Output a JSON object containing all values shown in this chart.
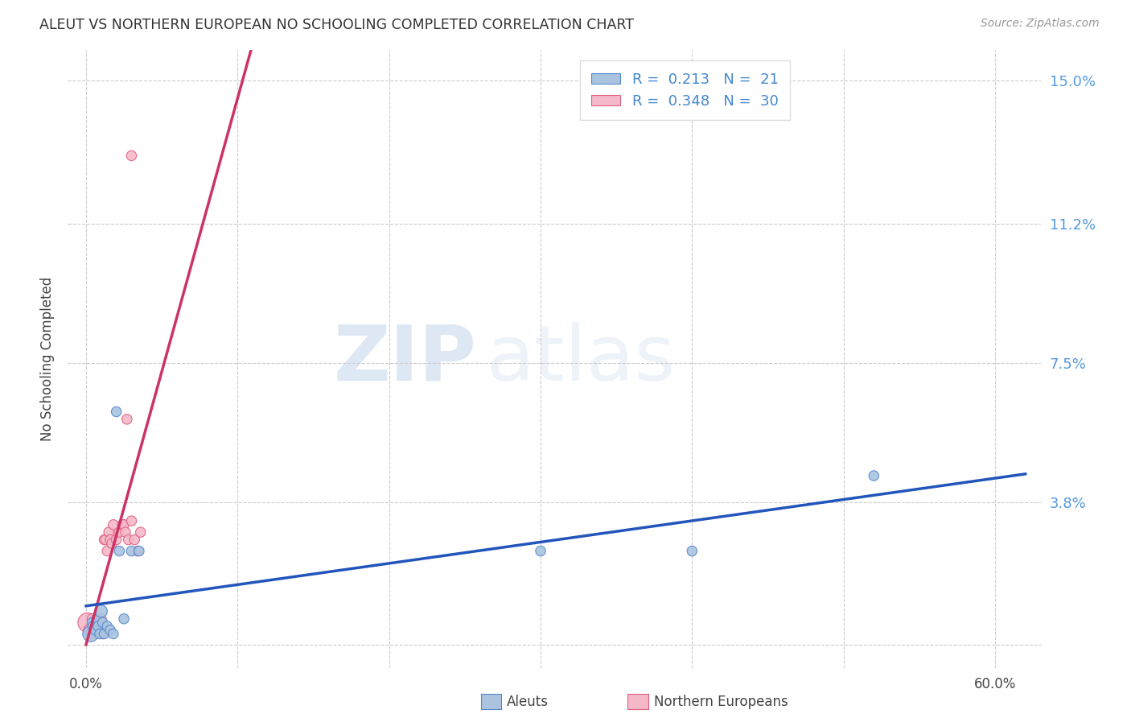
{
  "title": "ALEUT VS NORTHERN EUROPEAN NO SCHOOLING COMPLETED CORRELATION CHART",
  "source": "Source: ZipAtlas.com",
  "ylabel": "No Schooling Completed",
  "xlim": [
    -0.012,
    0.63
  ],
  "ylim": [
    -0.006,
    0.158
  ],
  "x_tick_positions": [
    0.0,
    0.1,
    0.2,
    0.3,
    0.4,
    0.5,
    0.6
  ],
  "x_tick_labels": [
    "0.0%",
    "",
    "",
    "",
    "",
    "",
    "60.0%"
  ],
  "y_tick_positions": [
    0.0,
    0.038,
    0.075,
    0.112,
    0.15
  ],
  "y_tick_labels": [
    "",
    "3.8%",
    "7.5%",
    "11.2%",
    "15.0%"
  ],
  "legend_r_aleuts": "R =  0.213",
  "legend_n_aleuts": "N =  21",
  "legend_r_northern": "R =  0.348",
  "legend_n_northern": "N =  30",
  "color_aleuts": "#aac4e0",
  "color_northern": "#f4b8c8",
  "edge_color_aleuts": "#5588cc",
  "edge_color_northern": "#e06080",
  "trend_color_aleuts": "#2255bb",
  "trend_color_northern": "#cc3366",
  "background_color": "#ffffff",
  "watermark_zip": "ZIP",
  "watermark_atlas": "atlas",
  "aleuts_x": [
    0.003,
    0.004,
    0.005,
    0.006,
    0.007,
    0.008,
    0.009,
    0.01,
    0.011,
    0.012,
    0.014,
    0.016,
    0.018,
    0.02,
    0.022,
    0.025,
    0.03,
    0.035,
    0.3,
    0.4,
    0.52
  ],
  "aleuts_y": [
    0.003,
    0.006,
    0.005,
    0.004,
    0.007,
    0.005,
    0.003,
    0.009,
    0.006,
    0.003,
    0.005,
    0.004,
    0.003,
    0.062,
    0.025,
    0.007,
    0.025,
    0.025,
    0.025,
    0.025,
    0.045
  ],
  "aleuts_size": [
    200,
    80,
    100,
    80,
    80,
    80,
    80,
    120,
    80,
    80,
    80,
    80,
    80,
    80,
    80,
    80,
    80,
    80,
    80,
    80,
    80
  ],
  "northern_x": [
    0.001,
    0.002,
    0.003,
    0.004,
    0.005,
    0.006,
    0.007,
    0.008,
    0.009,
    0.01,
    0.011,
    0.012,
    0.013,
    0.014,
    0.015,
    0.016,
    0.017,
    0.018,
    0.02,
    0.022,
    0.024,
    0.025,
    0.026,
    0.027,
    0.028,
    0.03,
    0.032,
    0.034,
    0.036,
    0.03
  ],
  "northern_y": [
    0.006,
    0.004,
    0.003,
    0.007,
    0.005,
    0.003,
    0.006,
    0.004,
    0.005,
    0.007,
    0.003,
    0.028,
    0.028,
    0.025,
    0.03,
    0.028,
    0.027,
    0.032,
    0.028,
    0.03,
    0.032,
    0.032,
    0.03,
    0.06,
    0.028,
    0.033,
    0.028,
    0.025,
    0.03,
    0.13
  ],
  "northern_size": [
    300,
    100,
    80,
    80,
    80,
    80,
    80,
    80,
    80,
    80,
    80,
    80,
    80,
    80,
    80,
    80,
    80,
    80,
    80,
    80,
    80,
    80,
    80,
    80,
    80,
    80,
    80,
    80,
    80,
    80
  ]
}
